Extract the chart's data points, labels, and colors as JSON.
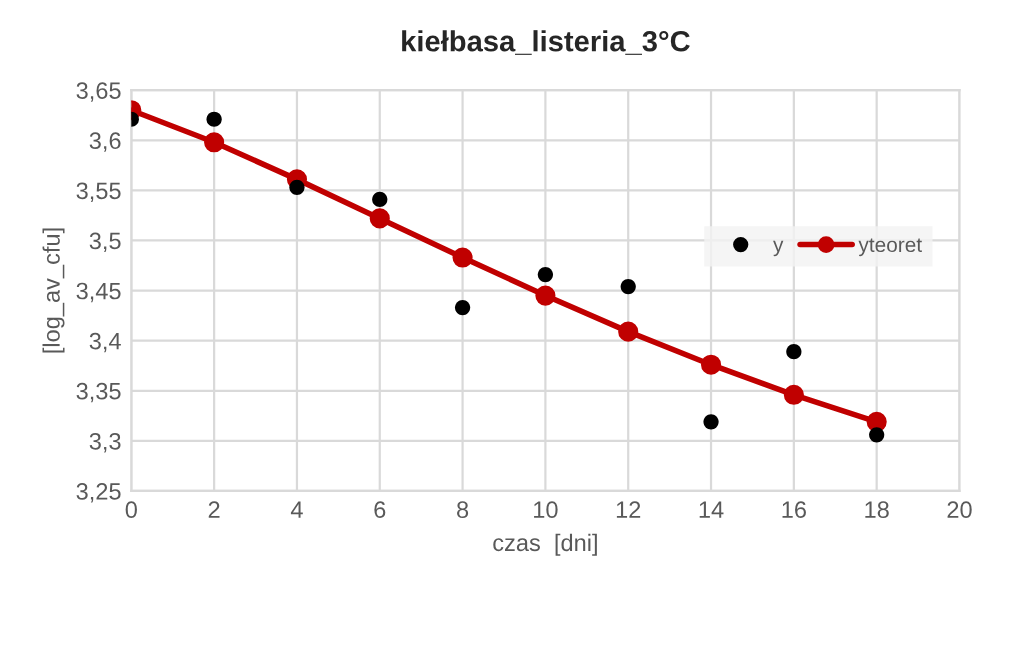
{
  "chart_data": {
    "type": "scatter",
    "title": "kiełbasa_listeria_3°C",
    "xlabel": "czas  [dni]",
    "ylabel": "[log_av_cfu]",
    "xlim": [
      0,
      20
    ],
    "xticks": [
      0,
      2,
      4,
      6,
      8,
      10,
      12,
      14,
      16,
      18,
      20
    ],
    "ylim": [
      3.25,
      3.65
    ],
    "yticks": [
      {
        "value": 3.25,
        "label": "3,25"
      },
      {
        "value": 3.3,
        "label": "3,3"
      },
      {
        "value": 3.35,
        "label": "3,35"
      },
      {
        "value": 3.4,
        "label": "3,4"
      },
      {
        "value": 3.45,
        "label": "3,45"
      },
      {
        "value": 3.5,
        "label": "3,5"
      },
      {
        "value": 3.55,
        "label": "3,55"
      },
      {
        "value": 3.6,
        "label": "3,6"
      },
      {
        "value": 3.65,
        "label": "3,65"
      }
    ],
    "grid": true,
    "legend": "right",
    "marker": "circle",
    "series": [
      {
        "name": "y",
        "color": "#000000",
        "x": [
          0,
          2,
          4,
          6,
          8,
          10,
          12,
          14,
          16,
          18
        ],
        "values": [
          3.621,
          3.621,
          3.553,
          3.541,
          3.433,
          3.466,
          3.454,
          3.319,
          3.389,
          3.306
        ]
      },
      {
        "name": "yteoret",
        "type": "line",
        "color": "#c00000",
        "line_style": "solid",
        "x": [
          0,
          2,
          4,
          6,
          8,
          10,
          12,
          14,
          16,
          18
        ],
        "values": [
          3.63,
          3.598,
          3.561,
          3.522,
          3.483,
          3.445,
          3.409,
          3.376,
          3.346,
          3.319
        ]
      }
    ]
  }
}
